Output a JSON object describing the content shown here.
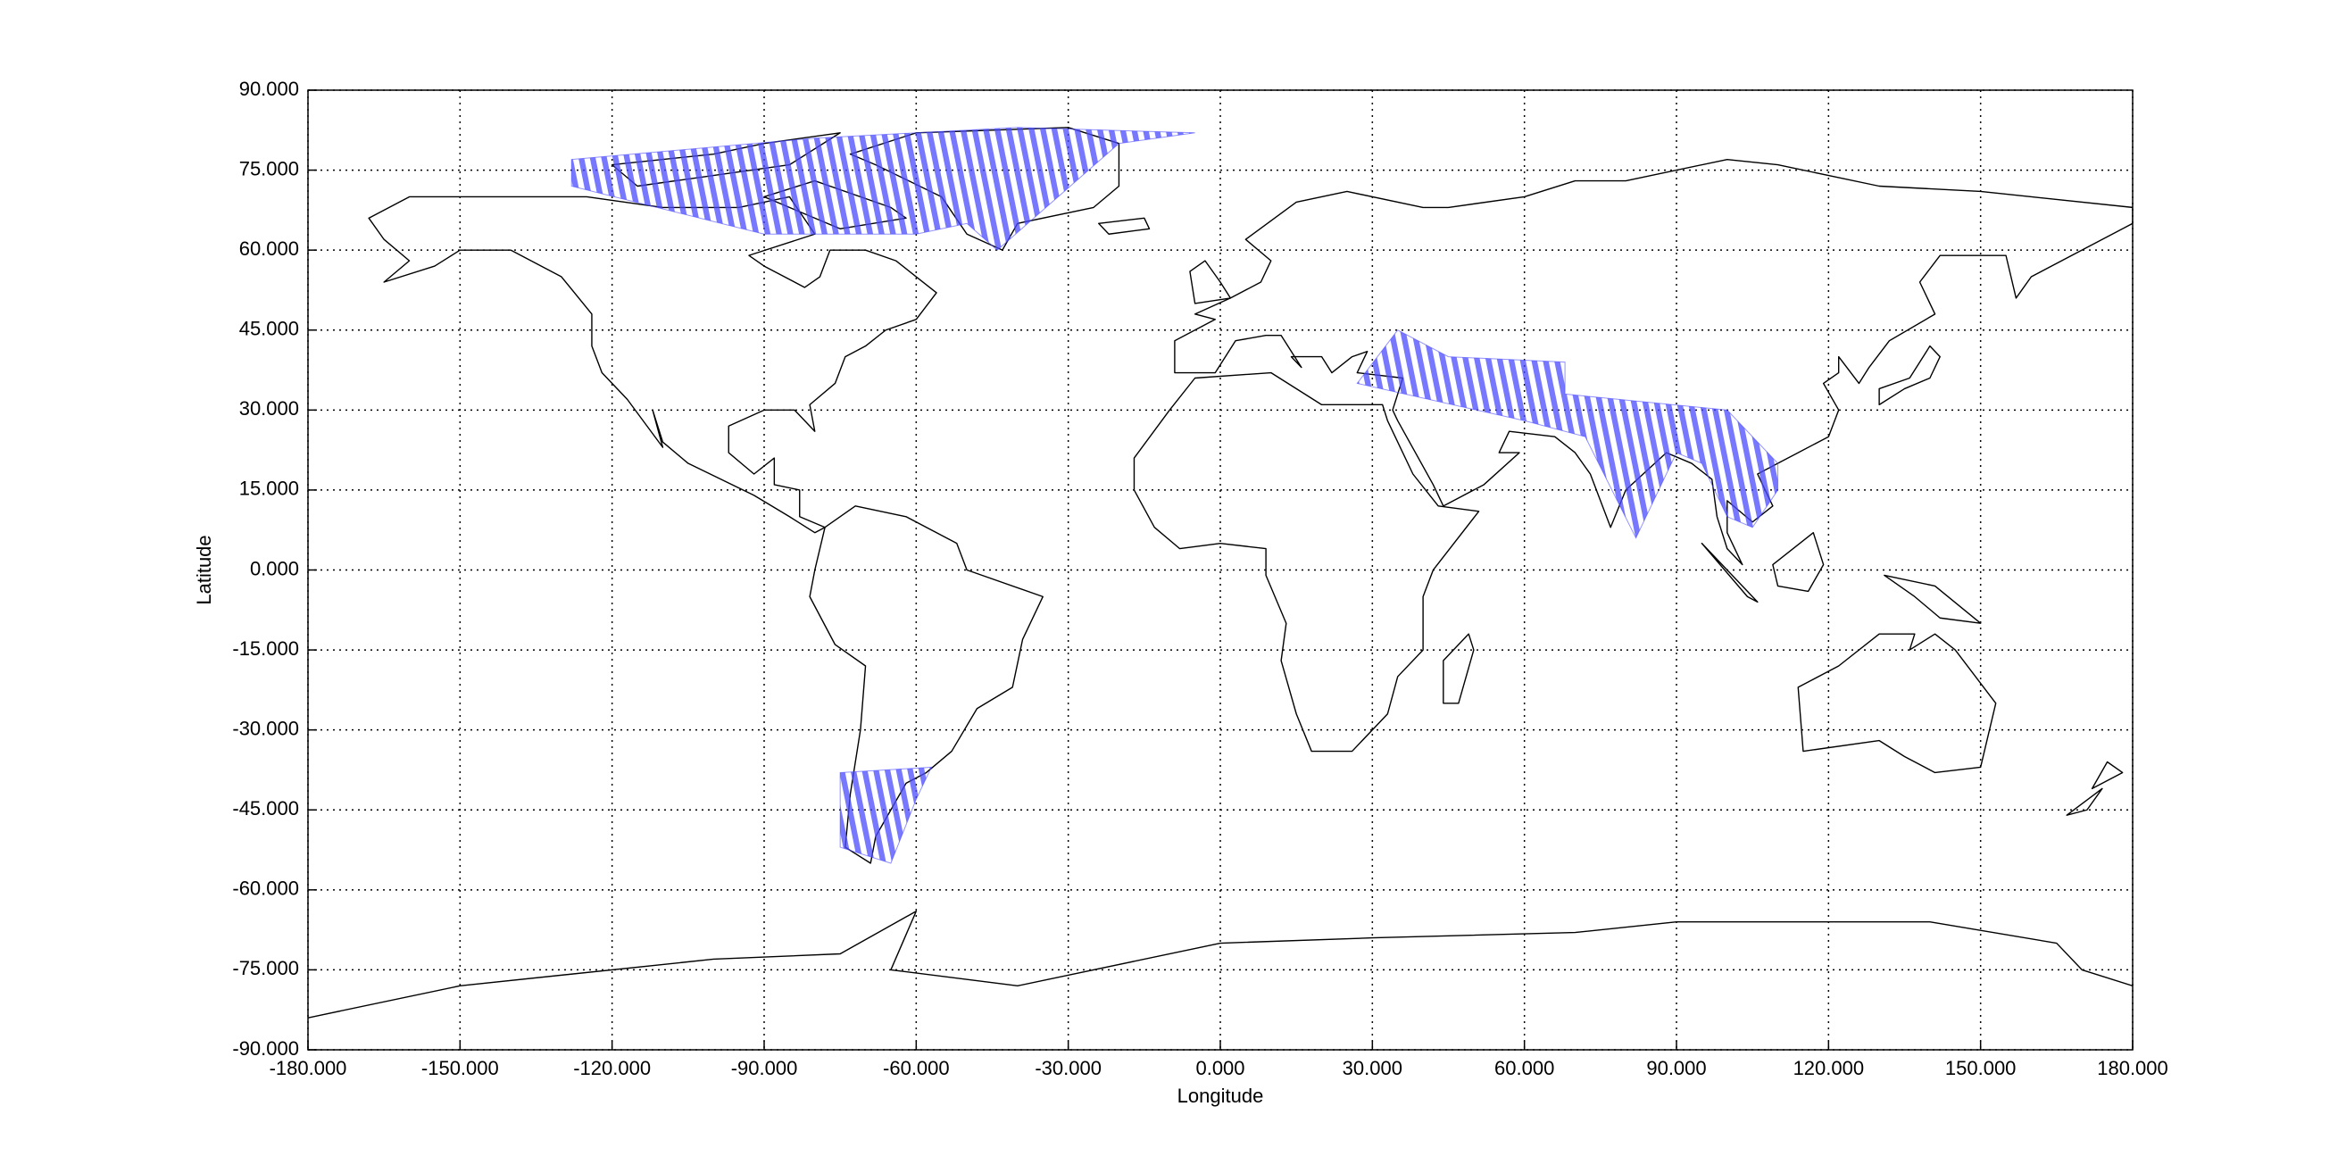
{
  "chart_data": {
    "type": "map",
    "xlabel": "Longitude",
    "ylabel": "Latitude",
    "xlim": [
      -180,
      180
    ],
    "ylim": [
      -90,
      90
    ],
    "xticks": [
      {
        "value": -180,
        "label": "-180.000"
      },
      {
        "value": -150,
        "label": "-150.000"
      },
      {
        "value": -120,
        "label": "-120.000"
      },
      {
        "value": -90,
        "label": "-90.000"
      },
      {
        "value": -60,
        "label": "-60.000"
      },
      {
        "value": -30,
        "label": "-30.000"
      },
      {
        "value": 0,
        "label": "0.000"
      },
      {
        "value": 30,
        "label": "30.000"
      },
      {
        "value": 60,
        "label": "60.000"
      },
      {
        "value": 90,
        "label": "90.000"
      },
      {
        "value": 120,
        "label": "120.000"
      },
      {
        "value": 150,
        "label": "150.000"
      },
      {
        "value": 180,
        "label": "180.000"
      }
    ],
    "yticks": [
      {
        "value": -90,
        "label": "-90.000"
      },
      {
        "value": -75,
        "label": "-75.000"
      },
      {
        "value": -60,
        "label": "-60.000"
      },
      {
        "value": -45,
        "label": "-45.000"
      },
      {
        "value": -30,
        "label": "-30.000"
      },
      {
        "value": -15,
        "label": "-15.000"
      },
      {
        "value": 0,
        "label": "0.000"
      },
      {
        "value": 15,
        "label": "15.000"
      },
      {
        "value": 30,
        "label": "30.000"
      },
      {
        "value": 45,
        "label": "45.000"
      },
      {
        "value": 60,
        "label": "60.000"
      },
      {
        "value": 75,
        "label": "75.000"
      },
      {
        "value": 90,
        "label": "90.000"
      }
    ],
    "grid": true,
    "swath_color": "#4a4aff"
  }
}
